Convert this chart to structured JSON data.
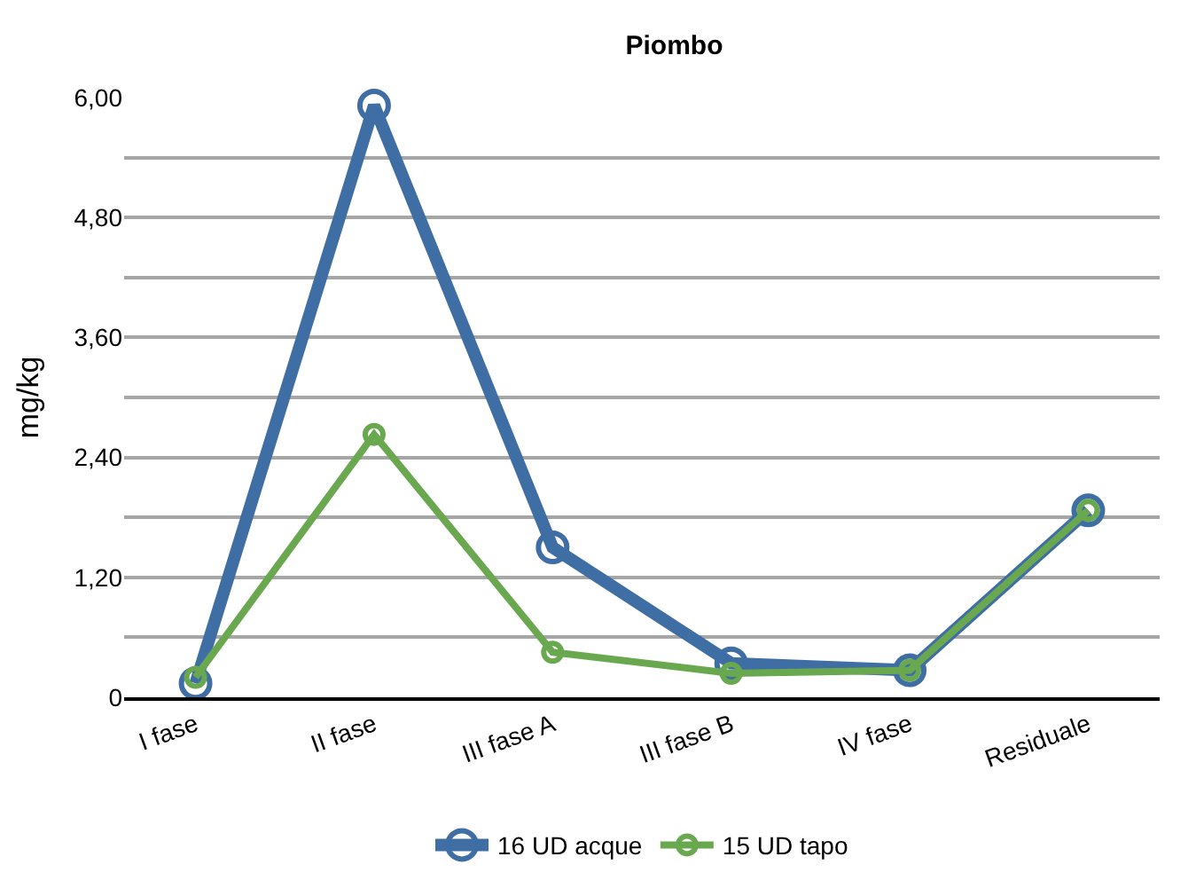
{
  "chart_data": {
    "type": "line",
    "title": "Piombo",
    "ylabel": "mg/kg",
    "categories": [
      "I fase",
      "II fase",
      "III fase A",
      "III fase B",
      "IV fase",
      "Residuale"
    ],
    "series": [
      {
        "name": "16 UD acque",
        "color": "#3f6ea5",
        "values": [
          0.14,
          5.92,
          1.5,
          0.34,
          0.27,
          1.87
        ]
      },
      {
        "name": "15 UD tapo",
        "color": "#6aa84f",
        "values": [
          0.2,
          2.63,
          0.45,
          0.24,
          0.27,
          1.87
        ]
      }
    ],
    "ylim": [
      0,
      6
    ],
    "yticks": [
      {
        "value": 0,
        "label": "0"
      },
      {
        "value": 0.6,
        "label": null
      },
      {
        "value": 1.2,
        "label": "1,20"
      },
      {
        "value": 1.8,
        "label": null
      },
      {
        "value": 2.4,
        "label": "2,40"
      },
      {
        "value": 3.0,
        "label": null
      },
      {
        "value": 3.6,
        "label": "3,60"
      },
      {
        "value": 4.2,
        "label": null
      },
      {
        "value": 4.8,
        "label": "4,80"
      },
      {
        "value": 5.4,
        "label": null
      },
      {
        "value": 6,
        "label": "6,00"
      }
    ],
    "grid": "y",
    "legend": "bottom",
    "marker": "circle",
    "line_style": "solid"
  }
}
